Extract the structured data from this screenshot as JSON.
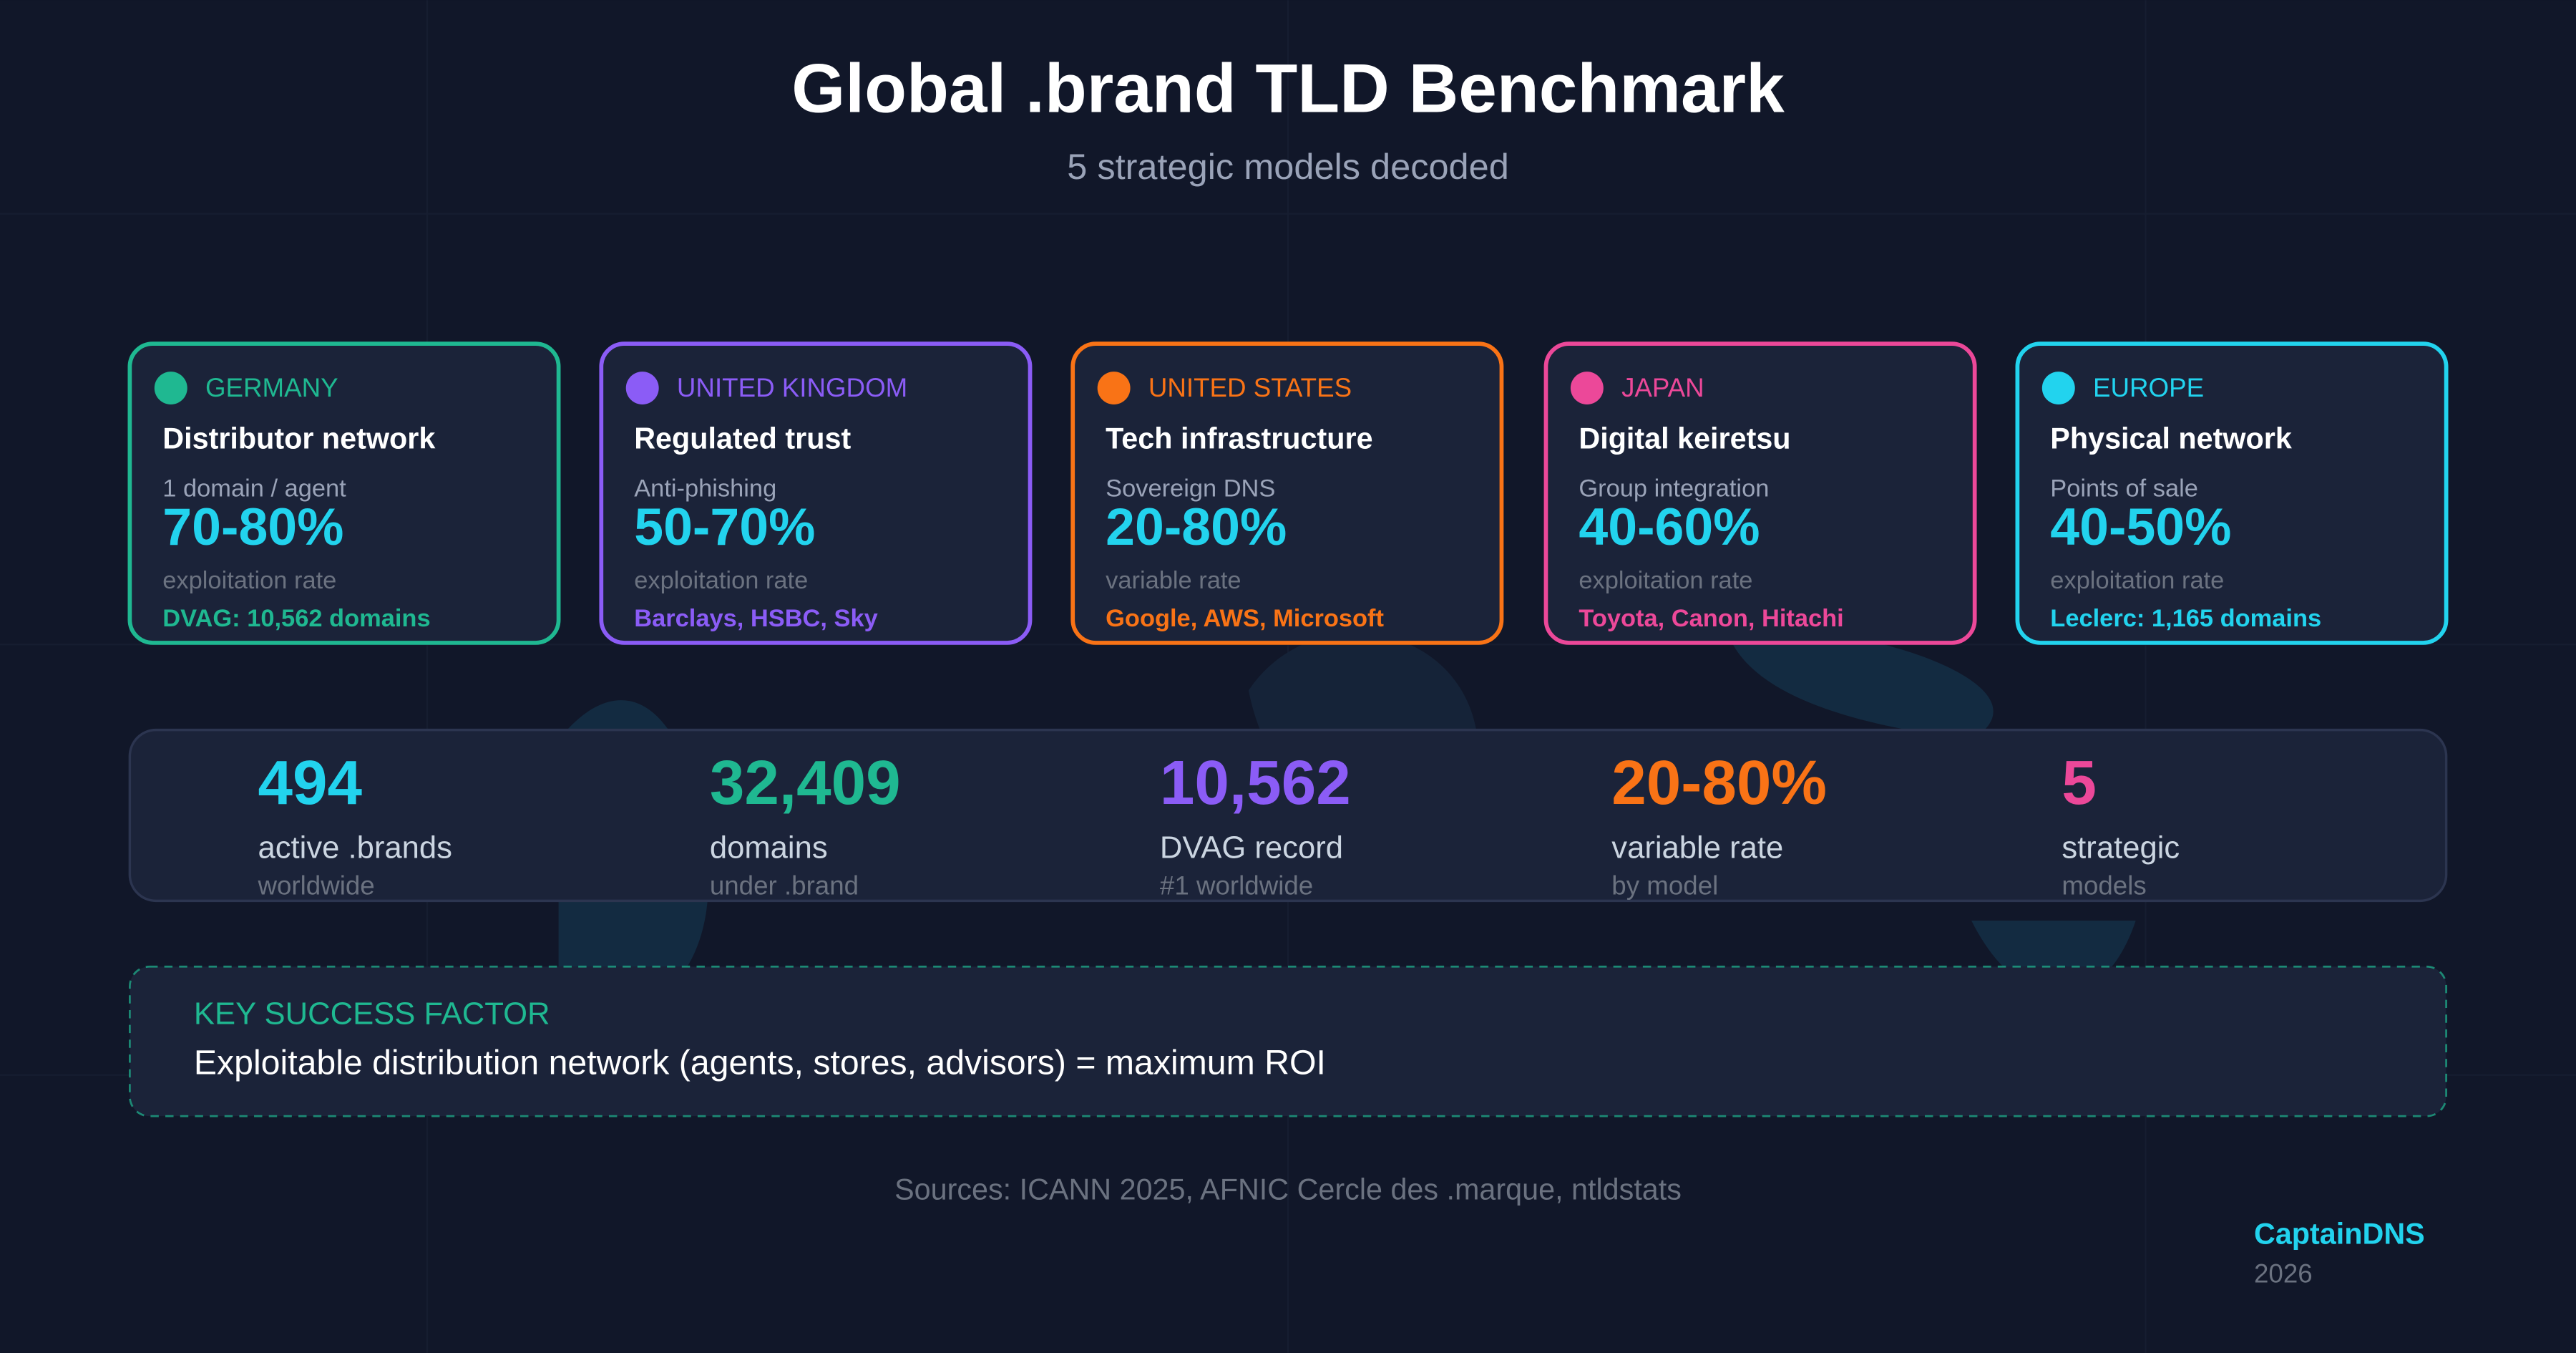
{
  "header": {
    "title": "Global .brand TLD Benchmark",
    "subtitle": "5 strategic models decoded"
  },
  "cards": [
    {
      "region": "GERMANY",
      "model": "Distributor network",
      "metric": "1 domain / agent",
      "rate": "70-80%",
      "rate_label": "exploitation rate",
      "example": "DVAG: 10,562 domains"
    },
    {
      "region": "UNITED KINGDOM",
      "model": "Regulated trust",
      "metric": "Anti-phishing",
      "rate": "50-70%",
      "rate_label": "exploitation rate",
      "example": "Barclays, HSBC, Sky"
    },
    {
      "region": "UNITED STATES",
      "model": "Tech infrastructure",
      "metric": "Sovereign DNS",
      "rate": "20-80%",
      "rate_label": "variable rate",
      "example": "Google, AWS, Microsoft"
    },
    {
      "region": "JAPAN",
      "model": "Digital keiretsu",
      "metric": "Group integration",
      "rate": "40-60%",
      "rate_label": "exploitation rate",
      "example": "Toyota, Canon, Hitachi"
    },
    {
      "region": "EUROPE",
      "model": "Physical network",
      "metric": "Points of sale",
      "rate": "40-50%",
      "rate_label": "exploitation rate",
      "example": "Leclerc: 1,165 domains"
    }
  ],
  "stats": [
    {
      "value": "494",
      "label": "active .brands",
      "note": "worldwide"
    },
    {
      "value": "32,409",
      "label": "domains",
      "note": "under .brand"
    },
    {
      "value": "10,562",
      "label": "DVAG record",
      "note": "#1 worldwide"
    },
    {
      "value": "20-80%",
      "label": "variable rate",
      "note": "by model"
    },
    {
      "value": "5",
      "label": "strategic",
      "note": "models"
    }
  ],
  "key_factor": {
    "title": "KEY SUCCESS FACTOR",
    "text": "Exploitable distribution network (agents, stores, advisors) = maximum ROI"
  },
  "footer": {
    "sources": "Sources: ICANN 2025, AFNIC Cercle des .marque, ntldstats",
    "brand": "CaptainDNS",
    "year": "2026"
  }
}
